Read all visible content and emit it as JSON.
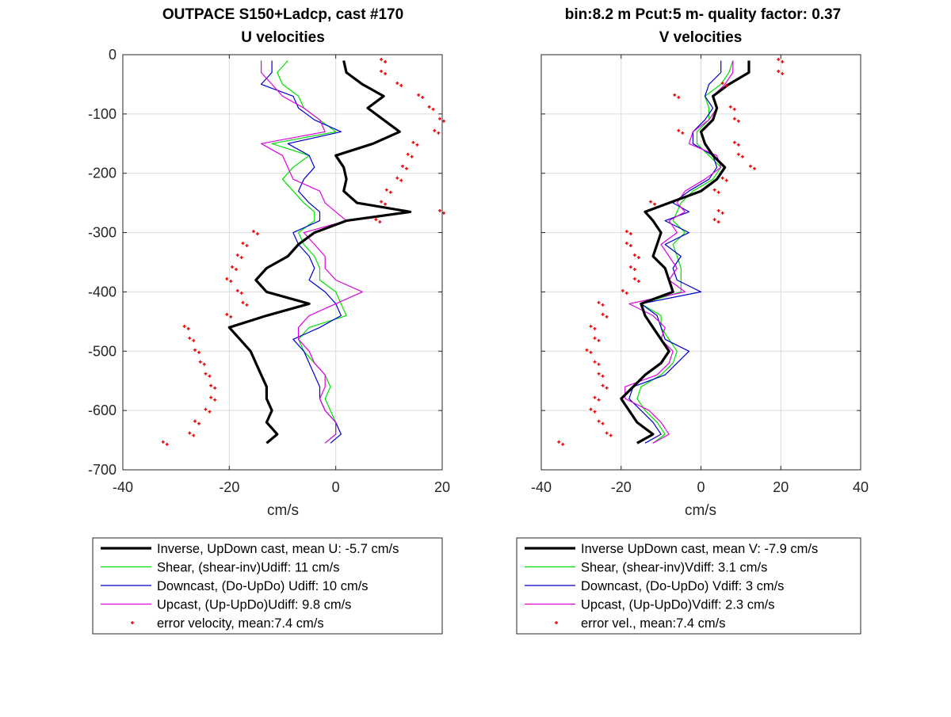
{
  "chart_data": [
    {
      "type": "line",
      "title": "OUTPACE S150+Ladcp, cast #170",
      "subtitle": "U velocities",
      "xlabel": "cm/s",
      "ylabel": "",
      "xlim": [
        -40,
        20
      ],
      "ylim": [
        -700,
        0
      ],
      "xticks": [
        -40,
        -20,
        0,
        20
      ],
      "yticks": [
        0,
        -100,
        -200,
        -300,
        -400,
        -500,
        -600,
        -700
      ],
      "grid": true,
      "legend_position": "bottom",
      "legend": [
        "Inverse, UpDown cast, mean U:  -5.7 cm/s",
        "Shear, (shear-inv)Udiff:  11 cm/s",
        "Downcast, (Do-UpDo) Udiff:  10 cm/s",
        "Upcast, (Up-UpDo)Udiff:  9.8 cm/s",
        "error velocity, mean:7.4 cm/s"
      ],
      "depth": [
        -10,
        -30,
        -50,
        -70,
        -90,
        -110,
        -130,
        -150,
        -170,
        -190,
        -210,
        -230,
        -250,
        -265,
        -280,
        -300,
        -320,
        -340,
        -360,
        -380,
        -400,
        -420,
        -440,
        -460,
        -480,
        -500,
        -520,
        -540,
        -560,
        -580,
        -600,
        -620,
        -640,
        -655
      ],
      "series": [
        {
          "role": "inverse",
          "color": "#000000",
          "values": [
            1.5,
            2,
            5,
            9,
            6,
            9,
            12,
            7,
            0,
            1.5,
            2,
            1.5,
            4,
            14,
            2,
            -4,
            -7,
            -9,
            -13,
            -15,
            -13,
            -5,
            -13,
            -20,
            -18,
            -16,
            -15,
            -14,
            -13,
            -13,
            -12,
            -13,
            -11,
            -13
          ]
        },
        {
          "role": "shear",
          "color": "#00e000",
          "values": [
            -9,
            -11,
            -10,
            -7,
            -6,
            -3,
            0,
            -12,
            -5,
            -8,
            -10,
            -8,
            -6,
            -4,
            -4,
            -7,
            -6,
            -4,
            -3,
            -3,
            0,
            1,
            2,
            -5,
            -7,
            -6,
            -4,
            -2,
            -1,
            -2,
            -1,
            0,
            0,
            -2
          ]
        },
        {
          "role": "downcast",
          "color": "#0000cc",
          "values": [
            -12,
            -12,
            -14,
            -8,
            -7,
            -4,
            1,
            -9,
            -5,
            -4,
            -6,
            -7,
            -5,
            -3,
            -3,
            -8,
            -7,
            -5,
            -4,
            -5,
            -2,
            0,
            1,
            -3,
            -8,
            -6,
            -5,
            -4,
            -3,
            -3,
            -2,
            0,
            1,
            -1
          ]
        },
        {
          "role": "upcast",
          "color": "#e000e0",
          "values": [
            -14,
            -14,
            -12,
            -10,
            -6,
            -3,
            -2,
            -14,
            -10,
            -9,
            -8,
            -3,
            -2,
            0,
            2,
            -6,
            -4,
            -2,
            -2,
            0,
            5,
            0,
            -5,
            -7,
            -7,
            -5,
            -4,
            -2,
            -2,
            -3,
            -2,
            0,
            0,
            -2
          ]
        },
        {
          "role": "error",
          "color": "#ee0000",
          "values": [
            9,
            9,
            12,
            16,
            18,
            20,
            19,
            15,
            14,
            13,
            12,
            10,
            9,
            20,
            8,
            -15,
            -17,
            -18,
            -19,
            -20,
            -18,
            -17,
            -20,
            -28,
            -27,
            -26,
            -25,
            -24,
            -23,
            -23,
            -24,
            -26,
            -27,
            -32
          ]
        }
      ]
    },
    {
      "type": "line",
      "title": "bin:8.2 m  Pcut:5 m- quality factor:  0.37",
      "subtitle": "V velocities",
      "xlabel": "cm/s",
      "ylabel": "",
      "xlim": [
        -40,
        40
      ],
      "ylim": [
        -700,
        0
      ],
      "xticks": [
        -40,
        -20,
        0,
        20,
        40
      ],
      "yticks": [
        0,
        -100,
        -200,
        -300,
        -400,
        -500,
        -600,
        -700
      ],
      "grid": true,
      "legend_position": "bottom",
      "legend": [
        "Inverse UpDown cast, mean V:  -7.9 cm/s",
        "Shear, (shear-inv)Vdiff:  3.1 cm/s",
        "Downcast, (Do-UpDo) Vdiff:  3 cm/s",
        "Upcast, (Up-UpDo)Vdiff:  2.3 cm/s",
        "error vel., mean:7.4 cm/s"
      ],
      "depth": [
        -10,
        -30,
        -50,
        -70,
        -90,
        -110,
        -130,
        -150,
        -170,
        -190,
        -210,
        -230,
        -250,
        -265,
        -280,
        -300,
        -320,
        -340,
        -360,
        -380,
        -400,
        -420,
        -440,
        -460,
        -480,
        -500,
        -520,
        -540,
        -560,
        -580,
        -600,
        -620,
        -640,
        -655
      ],
      "series": [
        {
          "role": "inverse",
          "color": "#000000",
          "values": [
            12,
            12,
            7,
            3,
            4,
            3,
            0,
            1,
            3,
            6,
            4,
            0,
            -8,
            -14,
            -12,
            -10,
            -11,
            -12,
            -9,
            -8,
            -7,
            -15,
            -14,
            -12,
            -10,
            -8,
            -10,
            -14,
            -17,
            -20,
            -18,
            -16,
            -12,
            -16
          ]
        },
        {
          "role": "shear",
          "color": "#00e000",
          "values": [
            8,
            7,
            5,
            1,
            2,
            2,
            -1,
            -1,
            2,
            5,
            3,
            -2,
            -5,
            -6,
            -7,
            -4,
            -7,
            -6,
            -5,
            -5,
            -5,
            -15,
            -10,
            -10,
            -8,
            -6,
            -7,
            -10,
            -15,
            -16,
            -14,
            -11,
            -9,
            -12
          ]
        },
        {
          "role": "downcast",
          "color": "#0000cc",
          "values": [
            5,
            5,
            2,
            1,
            3,
            1,
            -2,
            -2,
            3,
            4,
            2,
            -3,
            -7,
            -3,
            -9,
            -3,
            -9,
            -5,
            -7,
            -6,
            0,
            -15,
            -11,
            -10,
            -9,
            -3,
            -6,
            -9,
            -17,
            -18,
            -15,
            -12,
            -10,
            -14
          ]
        },
        {
          "role": "upcast",
          "color": "#e000e0",
          "values": [
            8,
            8,
            6,
            3,
            4,
            2,
            -2,
            -3,
            4,
            5,
            1,
            -4,
            -6,
            -4,
            -8,
            -6,
            -10,
            -8,
            -6,
            -8,
            -4,
            -18,
            -12,
            -9,
            -10,
            -7,
            -8,
            -11,
            -19,
            -19,
            -13,
            -10,
            -8,
            -12
          ]
        },
        {
          "role": "error",
          "color": "#ee0000",
          "values": [
            20,
            20,
            6,
            -6,
            8,
            9,
            -5,
            9,
            10,
            13,
            6,
            4,
            -12,
            5,
            4,
            -18,
            -18,
            -16,
            -17,
            -16,
            -19,
            -25,
            -24,
            -27,
            -26,
            -28,
            -26,
            -25,
            -24,
            -26,
            -27,
            -25,
            -23,
            -35
          ]
        }
      ]
    }
  ]
}
